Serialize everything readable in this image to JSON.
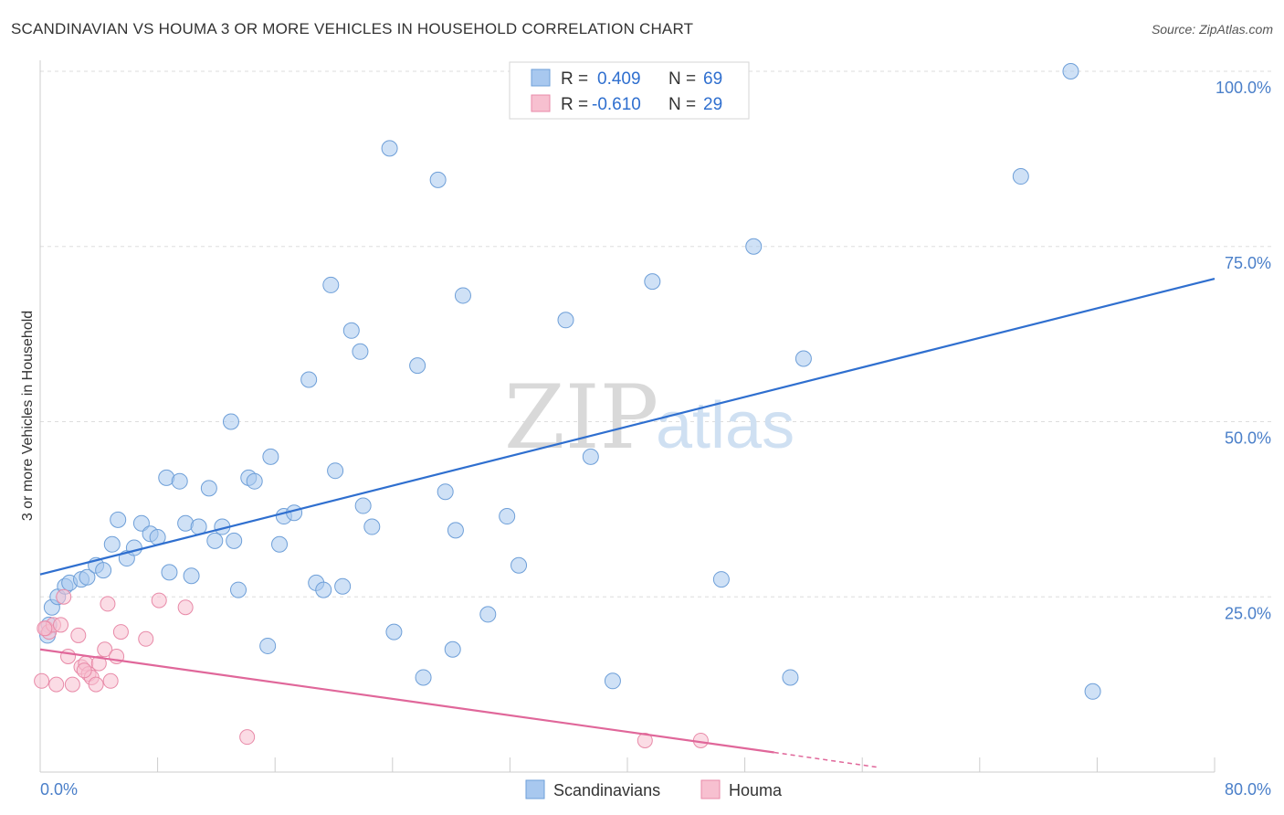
{
  "header": {
    "title": "SCANDINAVIAN VS HOUMA 3 OR MORE VEHICLES IN HOUSEHOLD CORRELATION CHART",
    "source": "Source: ZipAtlas.com"
  },
  "watermark": {
    "zip": "ZIP",
    "atlas": "atlas"
  },
  "legend_box": {
    "rows": [
      {
        "r_label": "R =",
        "r_value": "0.409",
        "n_label": "N =",
        "n_value": "69",
        "color": "#a8c8ef"
      },
      {
        "r_label": "R =",
        "r_value": "-0.610",
        "n_label": "N =",
        "n_value": "29",
        "color": "#f7b8ca"
      }
    ]
  },
  "bottom_legend": [
    "Scandinavians",
    "Houma"
  ],
  "colors": {
    "blue_fill": "#a8c8ef",
    "blue_stroke": "#6e9fd8",
    "blue_line": "#2f6fcf",
    "pink_fill": "#f7c0d0",
    "pink_stroke": "#e88aa8",
    "pink_line": "#e0679a",
    "grid": "#dddddd",
    "tick_text": "#4a7fc9"
  },
  "chart_data": {
    "type": "scatter",
    "title": "SCANDINAVIAN VS HOUMA 3 OR MORE VEHICLES IN HOUSEHOLD CORRELATION CHART",
    "xlabel": "",
    "ylabel": "3 or more Vehicles in Household",
    "xlim": [
      0,
      80
    ],
    "ylim": [
      0,
      100
    ],
    "x_tick_labels": [
      "0.0%",
      "80.0%"
    ],
    "y_ticks": [
      25,
      50,
      75,
      100
    ],
    "y_tick_labels": [
      "25.0%",
      "50.0%",
      "75.0%",
      "100.0%"
    ],
    "grid": true,
    "legend_position": "top-center",
    "series": [
      {
        "name": "Scandinavians",
        "r": 0.409,
        "n": 69,
        "trend": {
          "x": [
            0,
            80
          ],
          "y": [
            28.2,
            70.4
          ]
        },
        "points": [
          [
            0.5,
            19.5
          ],
          [
            0.6,
            21.0
          ],
          [
            0.8,
            23.5
          ],
          [
            1.2,
            25.0
          ],
          [
            1.7,
            26.5
          ],
          [
            2.0,
            27.0
          ],
          [
            2.8,
            27.5
          ],
          [
            3.2,
            27.8
          ],
          [
            3.8,
            29.5
          ],
          [
            4.3,
            28.8
          ],
          [
            4.9,
            32.5
          ],
          [
            5.3,
            36.0
          ],
          [
            5.9,
            30.5
          ],
          [
            6.4,
            32.0
          ],
          [
            6.9,
            35.5
          ],
          [
            7.5,
            34.0
          ],
          [
            8.0,
            33.5
          ],
          [
            8.6,
            42.0
          ],
          [
            8.8,
            28.5
          ],
          [
            9.5,
            41.5
          ],
          [
            9.9,
            35.5
          ],
          [
            10.3,
            28.0
          ],
          [
            10.8,
            35.0
          ],
          [
            11.5,
            40.5
          ],
          [
            11.9,
            33.0
          ],
          [
            12.4,
            35.0
          ],
          [
            13.2,
            33.0
          ],
          [
            13.5,
            26.0
          ],
          [
            13.0,
            50.0
          ],
          [
            14.2,
            42.0
          ],
          [
            14.6,
            41.5
          ],
          [
            15.5,
            18.0
          ],
          [
            15.7,
            45.0
          ],
          [
            16.3,
            32.5
          ],
          [
            16.6,
            36.5
          ],
          [
            17.3,
            37.0
          ],
          [
            18.3,
            56.0
          ],
          [
            18.8,
            27.0
          ],
          [
            19.3,
            26.0
          ],
          [
            19.8,
            69.5
          ],
          [
            20.1,
            43.0
          ],
          [
            20.6,
            26.5
          ],
          [
            21.2,
            63.0
          ],
          [
            21.8,
            60.0
          ],
          [
            22.0,
            38.0
          ],
          [
            22.6,
            35.0
          ],
          [
            23.8,
            89.0
          ],
          [
            24.1,
            20.0
          ],
          [
            25.7,
            58.0
          ],
          [
            26.1,
            13.5
          ],
          [
            27.1,
            84.5
          ],
          [
            27.6,
            40.0
          ],
          [
            28.1,
            17.5
          ],
          [
            28.3,
            34.5
          ],
          [
            28.8,
            68.0
          ],
          [
            30.5,
            22.5
          ],
          [
            31.8,
            36.5
          ],
          [
            32.6,
            29.5
          ],
          [
            35.8,
            64.5
          ],
          [
            37.5,
            45.0
          ],
          [
            39.0,
            13.0
          ],
          [
            41.7,
            70.0
          ],
          [
            46.4,
            27.5
          ],
          [
            48.6,
            75.0
          ],
          [
            51.1,
            13.5
          ],
          [
            52.0,
            59.0
          ],
          [
            66.8,
            85.0
          ],
          [
            70.2,
            100.0
          ],
          [
            71.7,
            11.5
          ]
        ]
      },
      {
        "name": "Houma",
        "r": -0.61,
        "n": 29,
        "trend": {
          "x": [
            0,
            50
          ],
          "y": [
            17.5,
            2.8
          ]
        },
        "trend_dashed": {
          "x": [
            50,
            57
          ],
          "y": [
            2.8,
            0.7
          ]
        },
        "points": [
          [
            0.1,
            13.0
          ],
          [
            0.4,
            20.5
          ],
          [
            0.6,
            20.0
          ],
          [
            0.9,
            21.0
          ],
          [
            1.1,
            12.5
          ],
          [
            1.4,
            21.0
          ],
          [
            1.6,
            25.0
          ],
          [
            1.9,
            16.5
          ],
          [
            2.2,
            12.5
          ],
          [
            2.6,
            19.5
          ],
          [
            2.8,
            15.0
          ],
          [
            3.1,
            15.5
          ],
          [
            3.3,
            14.0
          ],
          [
            3.5,
            13.5
          ],
          [
            3.8,
            12.5
          ],
          [
            4.0,
            15.5
          ],
          [
            4.4,
            17.5
          ],
          [
            4.6,
            24.0
          ],
          [
            4.8,
            13.0
          ],
          [
            5.2,
            16.5
          ],
          [
            5.5,
            20.0
          ],
          [
            7.2,
            19.0
          ],
          [
            8.1,
            24.5
          ],
          [
            9.9,
            23.5
          ],
          [
            14.1,
            5.0
          ],
          [
            41.2,
            4.5
          ],
          [
            45.0,
            4.5
          ],
          [
            3.0,
            14.5
          ],
          [
            0.3,
            20.5
          ]
        ]
      }
    ]
  }
}
